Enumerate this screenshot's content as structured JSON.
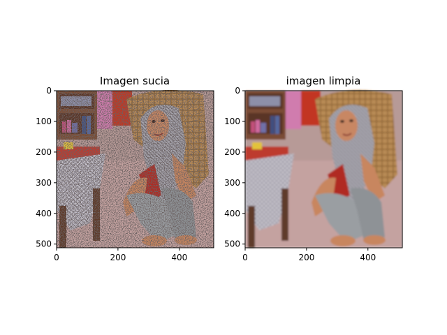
{
  "chart_data": [
    {
      "type": "image",
      "title": "Imagen sucia",
      "xlabel": "",
      "ylabel": "",
      "xlim": [
        0,
        511
      ],
      "ylim": [
        511,
        0
      ],
      "xticks": [
        0,
        200,
        400
      ],
      "yticks": [
        0,
        100,
        200,
        300,
        400,
        500
      ],
      "grid": false,
      "image_description": "noisy photo: woman in headscarf sitting on floor, wicker chair, bookshelf, tablecloth (salt-and-pepper noise)"
    },
    {
      "type": "image",
      "title": "imagen limpia",
      "xlabel": "",
      "ylabel": "",
      "xlim": [
        0,
        511
      ],
      "ylim": [
        511,
        0
      ],
      "xticks": [
        0,
        200,
        400
      ],
      "yticks": [
        0,
        100,
        200,
        300,
        400,
        500
      ],
      "grid": false,
      "image_description": "denoised (smoothed) version of the same photo"
    }
  ]
}
